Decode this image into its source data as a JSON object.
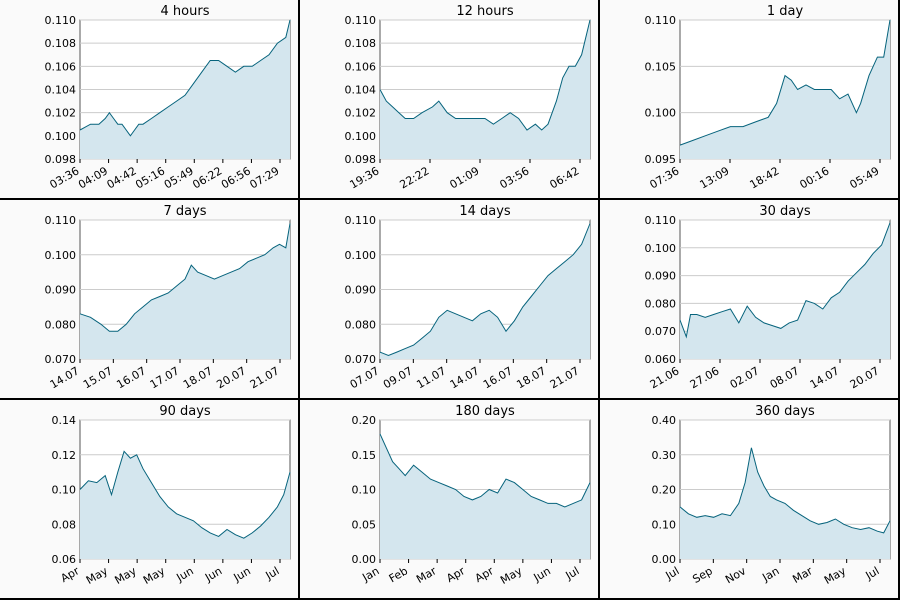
{
  "colors": {
    "line": "#06637c",
    "fill": "#d4e6ee",
    "grid": "#cccccc",
    "border": "#000000"
  },
  "chart_data": [
    {
      "type": "area",
      "title": "4 hours",
      "ylim": [
        0.098,
        0.11
      ],
      "y_ticks": [
        "0.098",
        "0.100",
        "0.102",
        "0.104",
        "0.106",
        "0.108",
        "0.110"
      ],
      "x_ticks": [
        "03:36",
        "04:09",
        "04:42",
        "05:16",
        "05:49",
        "06:22",
        "06:56",
        "07:29"
      ],
      "x": [
        0,
        5,
        9,
        12,
        14,
        16,
        18,
        20,
        22,
        24,
        26,
        28,
        30,
        34,
        38,
        42,
        46,
        50,
        54,
        58,
        62,
        66,
        70,
        74,
        78,
        82,
        86,
        90,
        94,
        98,
        100
      ],
      "y": [
        0.1005,
        0.101,
        0.101,
        0.1015,
        0.102,
        0.1015,
        0.101,
        0.101,
        0.1005,
        0.1,
        0.1005,
        0.101,
        0.101,
        0.1015,
        0.102,
        0.1025,
        0.103,
        0.1035,
        0.1045,
        0.1055,
        0.1065,
        0.1065,
        0.106,
        0.1055,
        0.106,
        0.106,
        0.1065,
        0.107,
        0.108,
        0.1085,
        0.11
      ]
    },
    {
      "type": "area",
      "title": "12 hours",
      "ylim": [
        0.098,
        0.11
      ],
      "y_ticks": [
        "0.098",
        "0.100",
        "0.102",
        "0.104",
        "0.106",
        "0.108",
        "0.110"
      ],
      "x_ticks": [
        "19:36",
        "22:22",
        "01:09",
        "03:56",
        "06:42"
      ],
      "x": [
        0,
        3,
        6,
        9,
        12,
        16,
        20,
        25,
        28,
        32,
        36,
        40,
        45,
        50,
        54,
        58,
        62,
        66,
        70,
        74,
        77,
        80,
        84,
        87,
        90,
        93,
        96,
        100
      ],
      "y": [
        0.104,
        0.103,
        0.1025,
        0.102,
        0.1015,
        0.1015,
        0.102,
        0.1025,
        0.103,
        0.102,
        0.1015,
        0.1015,
        0.1015,
        0.1015,
        0.101,
        0.1015,
        0.102,
        0.1015,
        0.1005,
        0.101,
        0.1005,
        0.101,
        0.103,
        0.105,
        0.106,
        0.106,
        0.107,
        0.11
      ]
    },
    {
      "type": "area",
      "title": "1 day",
      "ylim": [
        0.095,
        0.11
      ],
      "y_ticks": [
        "0.095",
        "0.100",
        "0.105",
        "0.110"
      ],
      "x_ticks": [
        "07:36",
        "13:09",
        "18:42",
        "00:16",
        "05:49"
      ],
      "x": [
        0,
        6,
        12,
        18,
        24,
        30,
        36,
        42,
        46,
        50,
        53,
        56,
        60,
        64,
        68,
        72,
        76,
        80,
        84,
        86,
        90,
        94,
        97,
        100
      ],
      "y": [
        0.0965,
        0.097,
        0.0975,
        0.098,
        0.0985,
        0.0985,
        0.099,
        0.0995,
        0.101,
        0.104,
        0.1035,
        0.1025,
        0.103,
        0.1025,
        0.1025,
        0.1025,
        0.1015,
        0.102,
        0.1,
        0.101,
        0.104,
        0.106,
        0.106,
        0.11
      ]
    },
    {
      "type": "area",
      "title": "7 days",
      "ylim": [
        0.07,
        0.11
      ],
      "y_ticks": [
        "0.070",
        "0.080",
        "0.090",
        "0.100",
        "0.110"
      ],
      "x_ticks": [
        "14.07",
        "15.07",
        "16.07",
        "17.07",
        "18.07",
        "20.07",
        "21.07"
      ],
      "x": [
        0,
        5,
        10,
        14,
        18,
        22,
        26,
        30,
        34,
        38,
        42,
        46,
        50,
        53,
        56,
        60,
        64,
        68,
        72,
        76,
        80,
        84,
        88,
        92,
        95,
        98,
        100
      ],
      "y": [
        0.083,
        0.082,
        0.08,
        0.078,
        0.078,
        0.08,
        0.083,
        0.085,
        0.087,
        0.088,
        0.089,
        0.091,
        0.093,
        0.097,
        0.095,
        0.094,
        0.093,
        0.094,
        0.095,
        0.096,
        0.098,
        0.099,
        0.1,
        0.102,
        0.103,
        0.102,
        0.109
      ]
    },
    {
      "type": "area",
      "title": "14 days",
      "ylim": [
        0.07,
        0.11
      ],
      "y_ticks": [
        "0.070",
        "0.080",
        "0.090",
        "0.100",
        "0.110"
      ],
      "x_ticks": [
        "07.07",
        "09.07",
        "11.07",
        "14.07",
        "16.07",
        "18.07",
        "21.07"
      ],
      "x": [
        0,
        4,
        8,
        12,
        16,
        20,
        24,
        28,
        32,
        36,
        40,
        44,
        48,
        52,
        56,
        60,
        64,
        68,
        72,
        76,
        80,
        84,
        88,
        92,
        96,
        100
      ],
      "y": [
        0.072,
        0.071,
        0.072,
        0.073,
        0.074,
        0.076,
        0.078,
        0.082,
        0.084,
        0.083,
        0.082,
        0.081,
        0.083,
        0.084,
        0.082,
        0.078,
        0.081,
        0.085,
        0.088,
        0.091,
        0.094,
        0.096,
        0.098,
        0.1,
        0.103,
        0.109
      ]
    },
    {
      "type": "area",
      "title": "30 days",
      "ylim": [
        0.06,
        0.11
      ],
      "y_ticks": [
        "0.060",
        "0.070",
        "0.080",
        "0.090",
        "0.100",
        "0.110"
      ],
      "x_ticks": [
        "21.06",
        "27.06",
        "02.07",
        "08.07",
        "14.07",
        "20.07"
      ],
      "x": [
        0,
        3,
        5,
        8,
        12,
        16,
        20,
        24,
        28,
        32,
        36,
        40,
        44,
        48,
        52,
        56,
        60,
        64,
        68,
        72,
        76,
        80,
        84,
        88,
        92,
        96,
        100
      ],
      "y": [
        0.074,
        0.068,
        0.076,
        0.076,
        0.075,
        0.076,
        0.077,
        0.078,
        0.073,
        0.079,
        0.075,
        0.073,
        0.072,
        0.071,
        0.073,
        0.074,
        0.081,
        0.08,
        0.078,
        0.082,
        0.084,
        0.088,
        0.091,
        0.094,
        0.098,
        0.101,
        0.109
      ]
    },
    {
      "type": "area",
      "title": "90 days",
      "ylim": [
        0.06,
        0.14
      ],
      "y_ticks": [
        "0.06",
        "0.08",
        "0.10",
        "0.12",
        "0.14"
      ],
      "x_ticks": [
        "Apr",
        "May",
        "May",
        "May",
        "Jun",
        "Jun",
        "Jun",
        "Jul"
      ],
      "x": [
        0,
        4,
        8,
        12,
        15,
        18,
        21,
        24,
        27,
        30,
        34,
        38,
        42,
        46,
        50,
        54,
        58,
        62,
        66,
        70,
        74,
        78,
        82,
        86,
        90,
        94,
        97,
        100
      ],
      "y": [
        0.1,
        0.105,
        0.104,
        0.108,
        0.097,
        0.11,
        0.122,
        0.118,
        0.12,
        0.112,
        0.104,
        0.096,
        0.09,
        0.086,
        0.084,
        0.082,
        0.078,
        0.075,
        0.073,
        0.077,
        0.074,
        0.072,
        0.075,
        0.079,
        0.084,
        0.09,
        0.097,
        0.11
      ]
    },
    {
      "type": "area",
      "title": "180 days",
      "ylim": [
        0.0,
        0.2
      ],
      "y_ticks": [
        "0.00",
        "0.05",
        "0.10",
        "0.15",
        "0.20"
      ],
      "x_ticks": [
        "Jan",
        "Feb",
        "Mar",
        "Apr",
        "Apr",
        "May",
        "Jun",
        "Jul"
      ],
      "x": [
        0,
        3,
        6,
        9,
        12,
        16,
        20,
        24,
        28,
        32,
        36,
        40,
        44,
        48,
        52,
        56,
        60,
        64,
        68,
        72,
        76,
        80,
        84,
        88,
        92,
        96,
        100
      ],
      "y": [
        0.18,
        0.16,
        0.14,
        0.13,
        0.12,
        0.135,
        0.125,
        0.115,
        0.11,
        0.105,
        0.1,
        0.09,
        0.085,
        0.09,
        0.1,
        0.095,
        0.115,
        0.11,
        0.1,
        0.09,
        0.085,
        0.08,
        0.08,
        0.075,
        0.08,
        0.085,
        0.11
      ]
    },
    {
      "type": "area",
      "title": "360 days",
      "ylim": [
        0.0,
        0.4
      ],
      "y_ticks": [
        "0.00",
        "0.10",
        "0.20",
        "0.30",
        "0.40"
      ],
      "x_ticks": [
        "Jul",
        "Sep",
        "Nov",
        "Jan",
        "Mar",
        "May",
        "Jul"
      ],
      "x": [
        0,
        4,
        8,
        12,
        16,
        20,
        24,
        28,
        31,
        34,
        37,
        40,
        43,
        46,
        50,
        54,
        58,
        62,
        66,
        70,
        74,
        78,
        82,
        86,
        90,
        94,
        97,
        100
      ],
      "y": [
        0.15,
        0.13,
        0.12,
        0.125,
        0.12,
        0.13,
        0.125,
        0.16,
        0.22,
        0.32,
        0.25,
        0.21,
        0.18,
        0.17,
        0.16,
        0.14,
        0.125,
        0.11,
        0.1,
        0.105,
        0.115,
        0.1,
        0.09,
        0.085,
        0.09,
        0.08,
        0.075,
        0.11
      ]
    }
  ]
}
